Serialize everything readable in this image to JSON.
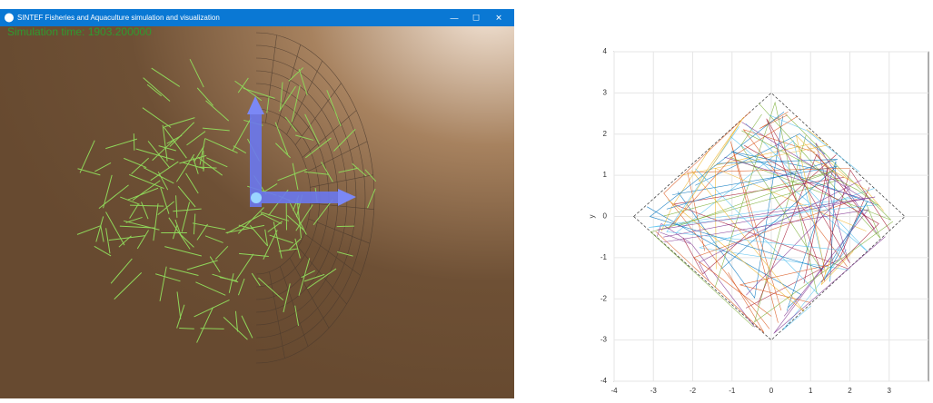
{
  "window": {
    "title": "SINTEF Fisheries and Aquaculture simulation and visualization",
    "controls": [
      "—",
      "☐",
      "✕"
    ],
    "status": "Simulation time: 1903.200000"
  },
  "chart_data": {
    "type": "line",
    "ylabel": "y",
    "xlim": [
      -4,
      4
    ],
    "ylim": [
      -4,
      4
    ],
    "xticks": [
      -4,
      -3,
      -2,
      -1,
      0,
      1,
      2,
      3
    ],
    "yticks": [
      -4,
      -3,
      -2,
      -1,
      0,
      1,
      2,
      3,
      4
    ],
    "grid": true
  }
}
